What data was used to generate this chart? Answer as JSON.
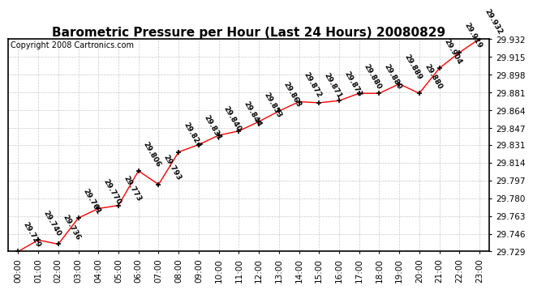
{
  "title": "Barometric Pressure per Hour (Last 24 Hours) 20080829",
  "copyright": "Copyright 2008 Cartronics.com",
  "hours": [
    "00:00",
    "01:00",
    "02:00",
    "03:00",
    "04:00",
    "05:00",
    "06:00",
    "07:00",
    "08:00",
    "09:00",
    "10:00",
    "11:00",
    "12:00",
    "13:00",
    "14:00",
    "15:00",
    "16:00",
    "17:00",
    "18:00",
    "19:00",
    "20:00",
    "21:00",
    "22:00",
    "23:00"
  ],
  "values": [
    29.729,
    29.74,
    29.736,
    29.761,
    29.77,
    29.773,
    29.806,
    29.793,
    29.824,
    29.831,
    29.84,
    29.844,
    29.853,
    29.863,
    29.872,
    29.871,
    29.873,
    29.88,
    29.88,
    29.889,
    29.88,
    29.904,
    29.919,
    29.932
  ],
  "ylim_min": 29.729,
  "ylim_max": 29.932,
  "yticks": [
    29.729,
    29.746,
    29.763,
    29.78,
    29.797,
    29.814,
    29.831,
    29.847,
    29.864,
    29.881,
    29.898,
    29.915,
    29.932
  ],
  "line_color": "red",
  "marker_color": "black",
  "bg_color": "white",
  "plot_bg_color": "white",
  "grid_color": "#c8c8c8",
  "title_fontsize": 11,
  "copyright_fontsize": 7,
  "label_fontsize": 6.5,
  "tick_fontsize": 7.5,
  "annotation_rotation": -60
}
